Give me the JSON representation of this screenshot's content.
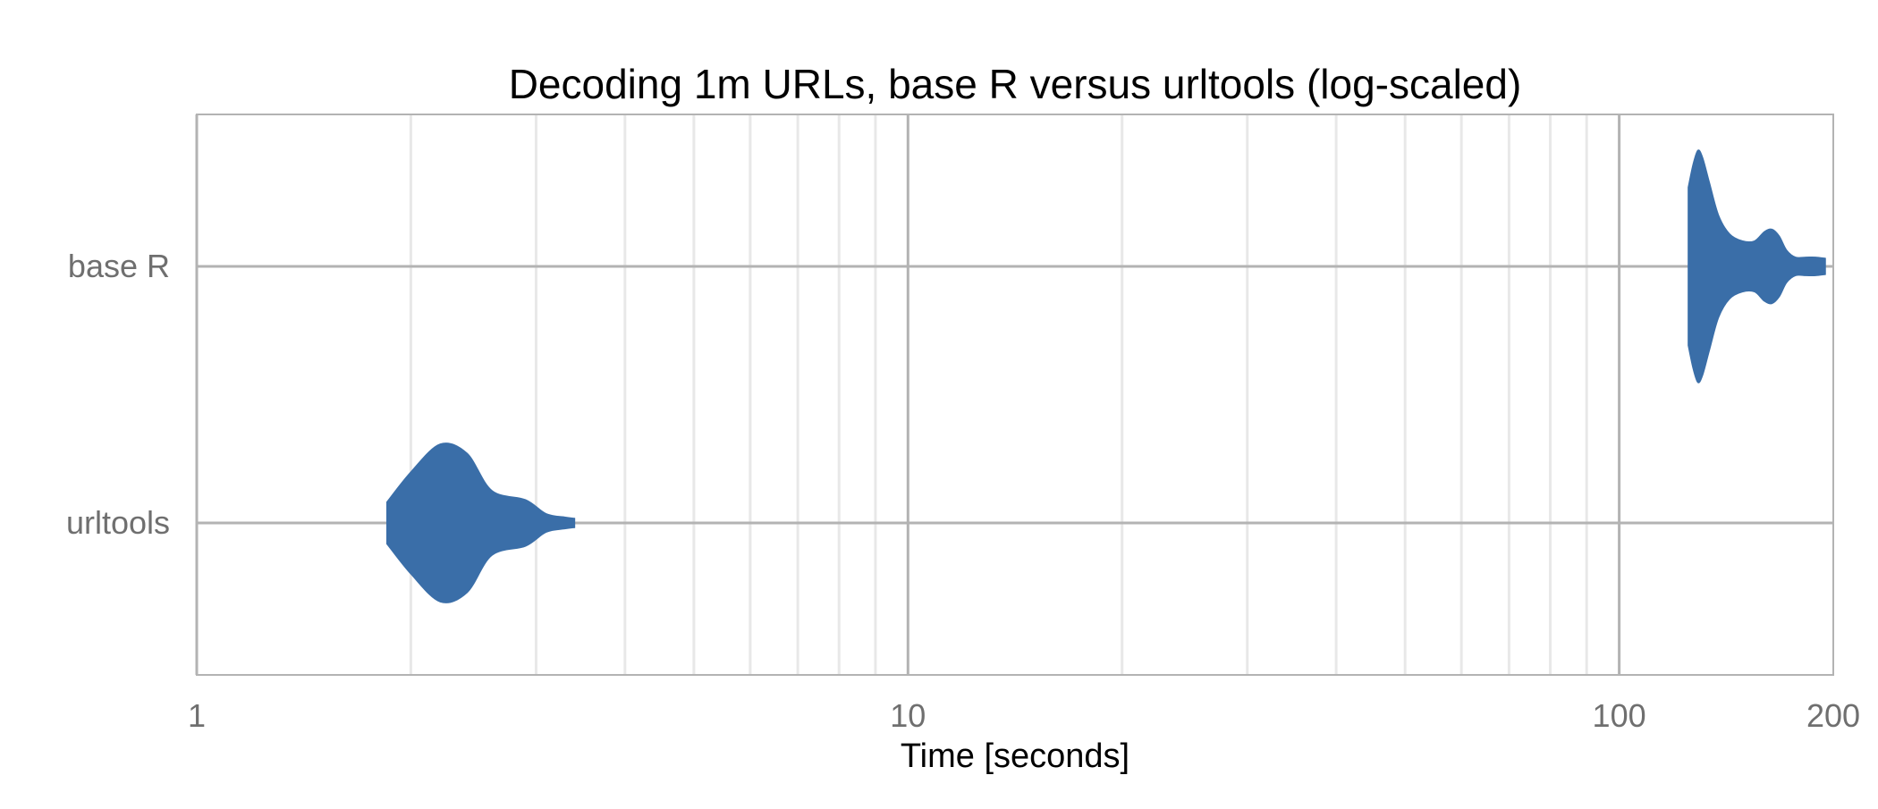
{
  "chart_data": {
    "type": "violin",
    "title": "Decoding 1m URLs, base R versus urltools (log-scaled)",
    "xlabel": "Time [seconds]",
    "ylabel": "",
    "x_scale": "log",
    "xlim": [
      1,
      200
    ],
    "x_ticks": [
      1,
      10,
      100,
      200
    ],
    "x_tick_labels": [
      "1",
      "10",
      "100",
      "200"
    ],
    "categories": [
      "base R",
      "urltools"
    ],
    "grid": true,
    "colors": {
      "violin": "#3A6EA8",
      "major_grid": "#B3B3B3",
      "minor_grid": "#E8E8E8",
      "frame": "#B3B3B3"
    },
    "series": [
      {
        "category": "base R",
        "density": [
          [
            125.0,
            0.34
          ],
          [
            127.0,
            0.44
          ],
          [
            129.0,
            0.5
          ],
          [
            131.0,
            0.47
          ],
          [
            134.0,
            0.36
          ],
          [
            138.0,
            0.22
          ],
          [
            143.0,
            0.14
          ],
          [
            149.0,
            0.11
          ],
          [
            155.0,
            0.11
          ],
          [
            160.0,
            0.15
          ],
          [
            164.0,
            0.16
          ],
          [
            168.0,
            0.13
          ],
          [
            172.0,
            0.07
          ],
          [
            177.0,
            0.04
          ],
          [
            183.0,
            0.04
          ],
          [
            189.0,
            0.04
          ],
          [
            195.0,
            0.035
          ]
        ]
      },
      {
        "category": "urltools",
        "density": [
          [
            1.85,
            0.09
          ],
          [
            2.0,
            0.22
          ],
          [
            2.2,
            0.34
          ],
          [
            2.4,
            0.3
          ],
          [
            2.6,
            0.14
          ],
          [
            2.9,
            0.1
          ],
          [
            3.1,
            0.04
          ],
          [
            3.3,
            0.025
          ],
          [
            3.4,
            0.02
          ]
        ]
      }
    ]
  }
}
